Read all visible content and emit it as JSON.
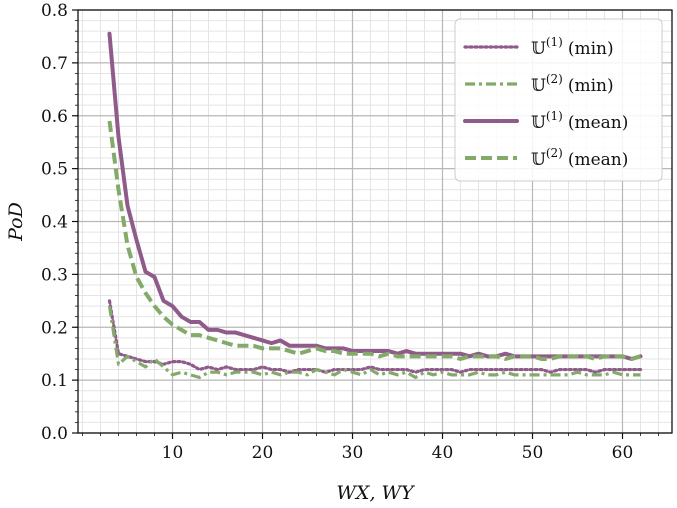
{
  "chart_data": {
    "type": "line",
    "xlabel": "W_X, W_Y",
    "ylabel": "PoD",
    "xlim": [
      -0.5,
      65.5
    ],
    "ylim": [
      0.0,
      0.8
    ],
    "x_ticks": [
      10,
      20,
      30,
      40,
      50,
      60
    ],
    "x_tick_labels": [
      "10",
      "20",
      "30",
      "40",
      "50",
      "60"
    ],
    "y_ticks": [
      0.0,
      0.1,
      0.2,
      0.3,
      0.4,
      0.5,
      0.6,
      0.7,
      0.8
    ],
    "y_tick_labels": [
      "0.0",
      "0.1",
      "0.2",
      "0.3",
      "0.4",
      "0.5",
      "0.6",
      "0.7",
      "0.8"
    ],
    "grid": true,
    "legend_position": "top-right",
    "x": [
      3,
      4,
      5,
      6,
      7,
      8,
      9,
      10,
      11,
      12,
      13,
      14,
      15,
      16,
      17,
      18,
      19,
      20,
      21,
      22,
      23,
      24,
      25,
      26,
      27,
      28,
      29,
      30,
      31,
      32,
      33,
      34,
      35,
      36,
      37,
      38,
      39,
      40,
      41,
      42,
      43,
      44,
      45,
      46,
      47,
      48,
      49,
      50,
      51,
      52,
      53,
      54,
      55,
      56,
      57,
      58,
      59,
      60,
      61,
      62
    ],
    "series": [
      {
        "name": "U(1) (min)",
        "legend_base": "𝕌",
        "legend_sup": "(1)",
        "legend_suffix": "(min)",
        "color": "#8f5b8a",
        "style": "dotted",
        "values": [
          0.25,
          0.15,
          0.145,
          0.14,
          0.135,
          0.135,
          0.13,
          0.135,
          0.135,
          0.13,
          0.12,
          0.125,
          0.12,
          0.125,
          0.12,
          0.12,
          0.12,
          0.125,
          0.12,
          0.12,
          0.115,
          0.12,
          0.12,
          0.12,
          0.115,
          0.12,
          0.12,
          0.12,
          0.12,
          0.125,
          0.12,
          0.12,
          0.12,
          0.12,
          0.115,
          0.12,
          0.12,
          0.12,
          0.12,
          0.115,
          0.12,
          0.12,
          0.12,
          0.12,
          0.12,
          0.12,
          0.12,
          0.12,
          0.12,
          0.115,
          0.12,
          0.12,
          0.12,
          0.12,
          0.115,
          0.12,
          0.12,
          0.12,
          0.12,
          0.12
        ]
      },
      {
        "name": "U(2) (min)",
        "legend_base": "𝕌",
        "legend_sup": "(2)",
        "legend_suffix": "(min)",
        "color": "#84aa6a",
        "style": "dashdot",
        "values": [
          0.24,
          0.13,
          0.145,
          0.135,
          0.125,
          0.14,
          0.125,
          0.11,
          0.115,
          0.11,
          0.105,
          0.115,
          0.115,
          0.11,
          0.115,
          0.115,
          0.115,
          0.11,
          0.115,
          0.11,
          0.115,
          0.115,
          0.11,
          0.12,
          0.115,
          0.11,
          0.12,
          0.115,
          0.11,
          0.12,
          0.11,
          0.115,
          0.11,
          0.115,
          0.105,
          0.115,
          0.11,
          0.115,
          0.11,
          0.11,
          0.11,
          0.115,
          0.11,
          0.11,
          0.115,
          0.11,
          0.11,
          0.11,
          0.11,
          0.11,
          0.11,
          0.11,
          0.115,
          0.11,
          0.11,
          0.11,
          0.115,
          0.11,
          0.11,
          0.11
        ]
      },
      {
        "name": "U(1) (mean)",
        "legend_base": "𝕌",
        "legend_sup": "(1)",
        "legend_suffix": "(mean)",
        "color": "#8f5b8a",
        "style": "solid",
        "values": [
          0.755,
          0.56,
          0.43,
          0.365,
          0.305,
          0.295,
          0.25,
          0.24,
          0.22,
          0.21,
          0.21,
          0.195,
          0.195,
          0.19,
          0.19,
          0.185,
          0.18,
          0.175,
          0.17,
          0.175,
          0.165,
          0.165,
          0.165,
          0.165,
          0.16,
          0.16,
          0.16,
          0.155,
          0.155,
          0.155,
          0.155,
          0.155,
          0.15,
          0.155,
          0.15,
          0.15,
          0.15,
          0.15,
          0.15,
          0.15,
          0.145,
          0.15,
          0.145,
          0.145,
          0.15,
          0.145,
          0.145,
          0.145,
          0.145,
          0.145,
          0.145,
          0.145,
          0.145,
          0.145,
          0.145,
          0.145,
          0.145,
          0.145,
          0.14,
          0.145
        ]
      },
      {
        "name": "U(2) (mean)",
        "legend_base": "𝕌",
        "legend_sup": "(2)",
        "legend_suffix": "(mean)",
        "color": "#84aa6a",
        "style": "dashed",
        "values": [
          0.59,
          0.46,
          0.355,
          0.295,
          0.265,
          0.24,
          0.22,
          0.205,
          0.195,
          0.185,
          0.185,
          0.18,
          0.175,
          0.17,
          0.165,
          0.165,
          0.165,
          0.16,
          0.16,
          0.16,
          0.155,
          0.15,
          0.155,
          0.16,
          0.155,
          0.155,
          0.15,
          0.15,
          0.15,
          0.15,
          0.145,
          0.15,
          0.145,
          0.145,
          0.145,
          0.145,
          0.145,
          0.145,
          0.145,
          0.14,
          0.145,
          0.145,
          0.145,
          0.145,
          0.14,
          0.145,
          0.145,
          0.145,
          0.14,
          0.14,
          0.145,
          0.145,
          0.145,
          0.145,
          0.14,
          0.145,
          0.145,
          0.145,
          0.14,
          0.145
        ]
      }
    ]
  }
}
